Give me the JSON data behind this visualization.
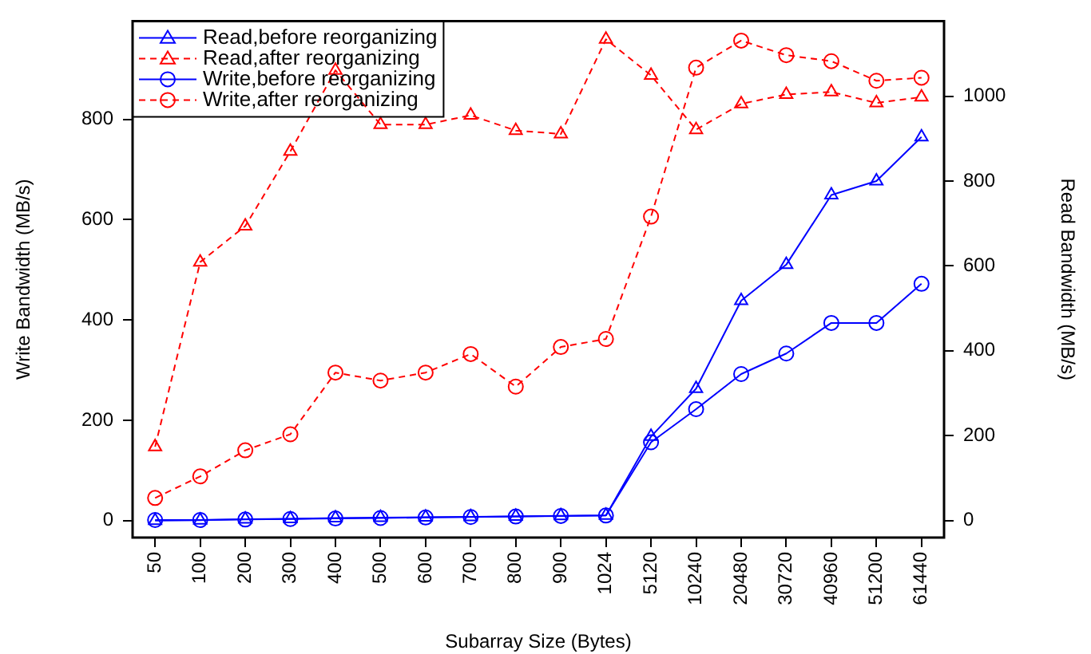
{
  "chart_data": {
    "type": "line",
    "xlabel": "Subarray Size (Bytes)",
    "ylabel": "Write Bandwidth (MB/s)",
    "y2label": "Read Bandwidth (MB/s)",
    "categories": [
      "50",
      "100",
      "200",
      "300",
      "400",
      "500",
      "600",
      "700",
      "800",
      "900",
      "1024",
      "5120",
      "10240",
      "20480",
      "30720",
      "40960",
      "51200",
      "61440"
    ],
    "series": [
      {
        "name": "Read,before reorganizing",
        "color": "#0000ff",
        "axis": "y2",
        "marker": "triangle",
        "line_style": "solid",
        "values": [
          0,
          1,
          3,
          4,
          6,
          7,
          8,
          9,
          10,
          11,
          12,
          198,
          311,
          518,
          603,
          767,
          800,
          904
        ]
      },
      {
        "name": "Read,after reorganizing",
        "color": "#ff0000",
        "axis": "y2",
        "marker": "triangle",
        "line_style": "dashed",
        "values": [
          174,
          609,
          694,
          870,
          1061,
          933,
          933,
          955,
          919,
          911,
          1134,
          1049,
          921,
          982,
          1004,
          1010,
          984,
          998
        ]
      },
      {
        "name": "Write,before reorganizing",
        "color": "#0000ff",
        "axis": "y",
        "marker": "circle",
        "line_style": "solid",
        "values": [
          1,
          1,
          2,
          3,
          4,
          5,
          6,
          7,
          8,
          9,
          10,
          156,
          222,
          292,
          333,
          394,
          394,
          472
        ]
      },
      {
        "name": "Write,after reorganizing",
        "color": "#ff0000",
        "axis": "y",
        "marker": "circle",
        "line_style": "dashed",
        "values": [
          45,
          88,
          140,
          172,
          295,
          279,
          295,
          332,
          267,
          346,
          362,
          606,
          903,
          957,
          928,
          916,
          877,
          883
        ]
      }
    ],
    "ylim": [
      -34,
      996
    ],
    "yticks": [
      0,
      200,
      400,
      600,
      800
    ],
    "y2lim": [
      -40,
      1177
    ],
    "y2ticks": [
      0,
      200,
      400,
      600,
      800,
      1000
    ],
    "legend": "top left",
    "grid": false
  }
}
